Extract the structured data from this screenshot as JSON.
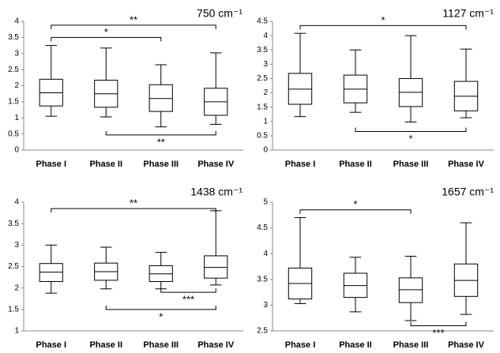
{
  "chart_data": [
    {
      "type": "box",
      "title": "750 cm⁻¹",
      "categories": [
        "Phase I",
        "Phase II",
        "Phase III",
        "Phase IV"
      ],
      "min": [
        1.05,
        1.03,
        0.72,
        0.8
      ],
      "q1": [
        1.37,
        1.33,
        1.2,
        1.08
      ],
      "median": [
        1.78,
        1.75,
        1.6,
        1.5
      ],
      "q3": [
        2.2,
        2.17,
        2.03,
        1.92
      ],
      "max": [
        3.25,
        3.17,
        2.65,
        3.02
      ],
      "ylim": [
        0,
        4
      ],
      "yticks": [
        0,
        0.5,
        1,
        1.5,
        2,
        2.5,
        3,
        3.5,
        4
      ],
      "annotations": [
        {
          "text": "**",
          "from": "Phase I",
          "to": "Phase IV",
          "y": 3.88,
          "side": "top"
        },
        {
          "text": "*",
          "from": "Phase I",
          "to": "Phase III",
          "y": 3.5,
          "side": "top"
        },
        {
          "text": "**",
          "from": "Phase II",
          "to": "Phase IV",
          "y": 0.47,
          "side": "bottom"
        }
      ]
    },
    {
      "type": "box",
      "title": "1127 cm⁻¹",
      "categories": [
        "Phase I",
        "Phase II",
        "Phase III",
        "Phase IV"
      ],
      "min": [
        1.17,
        1.32,
        0.98,
        1.13
      ],
      "q1": [
        1.6,
        1.65,
        1.52,
        1.37
      ],
      "median": [
        2.13,
        2.13,
        2.02,
        1.88
      ],
      "q3": [
        2.68,
        2.62,
        2.5,
        2.4
      ],
      "max": [
        4.08,
        3.5,
        4.0,
        3.53
      ],
      "ylim": [
        0,
        4.5
      ],
      "yticks": [
        0,
        0.5,
        1,
        1.5,
        2,
        2.5,
        3,
        3.5,
        4,
        4.5
      ],
      "annotations": [
        {
          "text": "*",
          "from": "Phase I",
          "to": "Phase IV",
          "y": 4.35,
          "side": "top"
        },
        {
          "text": "*",
          "from": "Phase II",
          "to": "Phase IV",
          "y": 0.65,
          "side": "bottom"
        }
      ]
    },
    {
      "type": "box",
      "title": "1438 cm⁻¹",
      "categories": [
        "Phase I",
        "Phase II",
        "Phase III",
        "Phase IV"
      ],
      "min": [
        1.88,
        1.98,
        1.98,
        2.07
      ],
      "q1": [
        2.15,
        2.18,
        2.15,
        2.23
      ],
      "median": [
        2.37,
        2.38,
        2.33,
        2.48
      ],
      "q3": [
        2.57,
        2.58,
        2.52,
        2.75
      ],
      "max": [
        3.0,
        2.95,
        2.83,
        3.8
      ],
      "ylim": [
        1,
        4
      ],
      "yticks": [
        1,
        1.5,
        2,
        2.5,
        3,
        3.5,
        4
      ],
      "annotations": [
        {
          "text": "**",
          "from": "Phase I",
          "to": "Phase IV",
          "y": 3.85,
          "side": "top"
        },
        {
          "text": "***",
          "from": "Phase III",
          "to": "Phase IV",
          "y": 1.9,
          "side": "bottom"
        },
        {
          "text": "*",
          "from": "Phase II",
          "to": "Phase IV",
          "y": 1.5,
          "side": "bottom"
        }
      ]
    },
    {
      "type": "box",
      "title": "1657 cm⁻¹",
      "categories": [
        "Phase I",
        "Phase II",
        "Phase III",
        "Phase IV"
      ],
      "min": [
        3.03,
        2.87,
        2.7,
        2.82
      ],
      "q1": [
        3.12,
        3.15,
        3.05,
        3.17
      ],
      "median": [
        3.42,
        3.38,
        3.3,
        3.48
      ],
      "q3": [
        3.72,
        3.62,
        3.53,
        3.8
      ],
      "max": [
        4.7,
        3.93,
        3.95,
        4.6
      ],
      "ylim": [
        2.5,
        5
      ],
      "yticks": [
        2.5,
        3,
        3.5,
        4,
        4.5,
        5
      ],
      "annotations": [
        {
          "text": "*",
          "from": "Phase I",
          "to": "Phase III",
          "y": 4.85,
          "side": "top"
        },
        {
          "text": "***",
          "from": "Phase III",
          "to": "Phase IV",
          "y": 2.6,
          "side": "bottom"
        }
      ]
    }
  ]
}
